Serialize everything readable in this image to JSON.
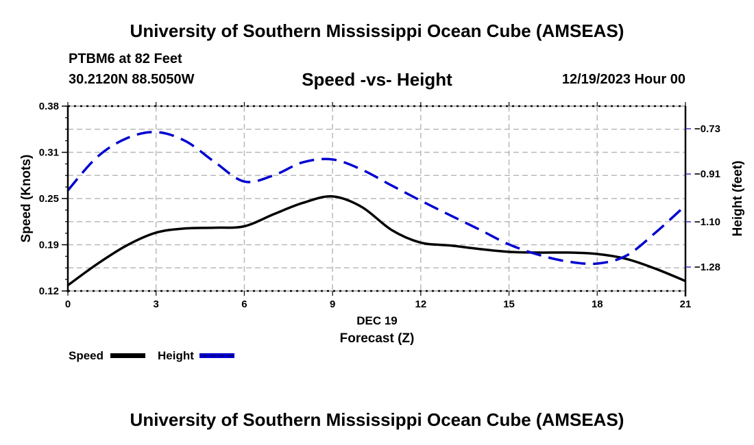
{
  "header": {
    "main_title": "University of Southern Mississippi Ocean Cube (AMSEAS)",
    "station": "PTBM6 at 82 Feet",
    "coords": "30.2120N  88.5050W",
    "chart_title": "Speed -vs- Height",
    "datetime": "12/19/2023 Hour 00"
  },
  "footer": {
    "title": "University of Southern Mississippi Ocean Cube (AMSEAS)"
  },
  "chart_data": {
    "type": "line",
    "title": "Speed -vs- Height",
    "xlabel": "Forecast (Z)",
    "xlabel_date": "DEC 19",
    "ylabel": "Speed (Knots)",
    "y2label": "Height (feet)",
    "x_ticks": [
      0,
      3,
      6,
      9,
      12,
      15,
      18,
      21
    ],
    "x_tick_labels": [
      "0",
      "3",
      "6",
      "9",
      "12",
      "15",
      "18",
      "21"
    ],
    "xlim": [
      0,
      21
    ],
    "ylim": [
      0.12,
      0.38
    ],
    "y_ticks": [
      0.12,
      0.185,
      0.25,
      0.315,
      0.38
    ],
    "y_tick_labels": [
      "0.12",
      "0.19",
      "0.25",
      "0.31",
      "0.38"
    ],
    "y2lim": [
      -1.375,
      -0.64
    ],
    "y2_ticks": [
      -1.28,
      -1.1,
      -0.91,
      -0.73
    ],
    "y2_tick_labels": [
      "−1.28",
      "−1.10",
      "−0.91",
      "−0.73"
    ],
    "grid": true,
    "legend_placement": "bottom-left",
    "x": [
      0,
      1,
      2,
      3,
      4,
      5,
      6,
      7,
      8,
      9,
      10,
      11,
      12,
      13,
      14,
      15,
      16,
      17,
      18,
      19,
      20,
      21
    ],
    "series": [
      {
        "name": "Speed",
        "axis": "left",
        "color": "#000000",
        "style": "solid",
        "values": [
          0.128,
          0.158,
          0.184,
          0.202,
          0.208,
          0.209,
          0.211,
          0.228,
          0.244,
          0.253,
          0.238,
          0.206,
          0.188,
          0.184,
          0.179,
          0.175,
          0.174,
          0.174,
          0.172,
          0.165,
          0.151,
          0.134
        ]
      },
      {
        "name": "Height",
        "axis": "right",
        "color": "#0000d0",
        "style": "dashed",
        "values": [
          -0.975,
          -0.842,
          -0.768,
          -0.743,
          -0.779,
          -0.863,
          -0.94,
          -0.915,
          -0.863,
          -0.852,
          -0.893,
          -0.955,
          -1.016,
          -1.074,
          -1.131,
          -1.19,
          -1.231,
          -1.258,
          -1.266,
          -1.234,
          -1.141,
          -1.035
        ]
      }
    ]
  },
  "legend": {
    "items": [
      {
        "label": "Speed",
        "color": "#000000",
        "style": "solid"
      },
      {
        "label": "Height",
        "color": "#0000d0",
        "style": "dashed"
      }
    ]
  }
}
